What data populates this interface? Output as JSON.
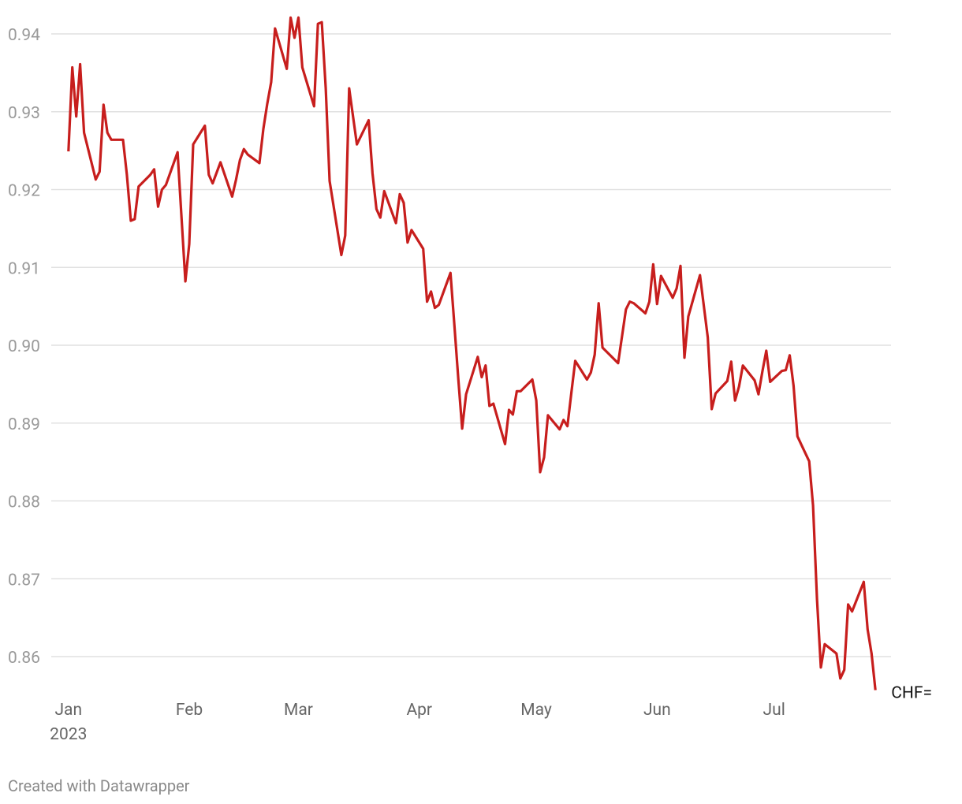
{
  "chart_data": {
    "type": "line",
    "credit": "Created with Datawrapper",
    "x": [
      0,
      1,
      2,
      3,
      4,
      7,
      8,
      9,
      10,
      11,
      14,
      15,
      16,
      17,
      18,
      21,
      22,
      23,
      24,
      25,
      28,
      30,
      31,
      32,
      35,
      36,
      37,
      39,
      42,
      43,
      44,
      45,
      46,
      49,
      50,
      51,
      52,
      53,
      56,
      57,
      58,
      59,
      60,
      63,
      64,
      65,
      66,
      67,
      70,
      71,
      72,
      74,
      77,
      78,
      79,
      80,
      81,
      84,
      85,
      86,
      87,
      88,
      91,
      92,
      93,
      94,
      95,
      98,
      99,
      100,
      101,
      102,
      105,
      106,
      107,
      108,
      109,
      112,
      113,
      114,
      115,
      116,
      119,
      120,
      121,
      122,
      123,
      126,
      127,
      128,
      129,
      130,
      133,
      134,
      135,
      136,
      137,
      141,
      143,
      144,
      145,
      148,
      149,
      150,
      151,
      152,
      155,
      156,
      157,
      158,
      159,
      162,
      164,
      165,
      166,
      169,
      170,
      171,
      172,
      173,
      176,
      177,
      178,
      179,
      180,
      183,
      184,
      185,
      186,
      187,
      190,
      191,
      192,
      193,
      194,
      197,
      198,
      199,
      200,
      201,
      204,
      205,
      206,
      207
    ],
    "series": [
      {
        "name": "CHF=",
        "color": "#c71e1d",
        "values": [
          0.9249,
          0.9357,
          0.9294,
          0.9361,
          0.9273,
          0.9213,
          0.9223,
          0.9309,
          0.9273,
          0.9264,
          0.9264,
          0.9219,
          0.916,
          0.9162,
          0.9204,
          0.9219,
          0.9226,
          0.9178,
          0.92,
          0.9206,
          0.9248,
          0.9082,
          0.913,
          0.9258,
          0.9282,
          0.9219,
          0.9208,
          0.9235,
          0.9191,
          0.9213,
          0.9238,
          0.9252,
          0.9245,
          0.9234,
          0.9278,
          0.931,
          0.9338,
          0.9407,
          0.9355,
          0.9421,
          0.9395,
          0.9421,
          0.9357,
          0.9307,
          0.9413,
          0.9415,
          0.933,
          0.9211,
          0.9116,
          0.9141,
          0.933,
          0.9258,
          0.9289,
          0.9221,
          0.9175,
          0.9164,
          0.9198,
          0.9157,
          0.9194,
          0.9183,
          0.9132,
          0.9148,
          0.9124,
          0.9056,
          0.9069,
          0.9048,
          0.9052,
          0.9093,
          0.9025,
          0.8957,
          0.8893,
          0.8937,
          0.8985,
          0.8959,
          0.8974,
          0.8922,
          0.8925,
          0.8873,
          0.8917,
          0.8911,
          0.8941,
          0.8941,
          0.8956,
          0.8929,
          0.8837,
          0.8856,
          0.891,
          0.8892,
          0.8904,
          0.8896,
          0.8939,
          0.898,
          0.8956,
          0.8965,
          0.8988,
          0.9054,
          0.8997,
          0.8977,
          0.9046,
          0.9056,
          0.9054,
          0.9041,
          0.9056,
          0.9104,
          0.9053,
          0.9089,
          0.9061,
          0.9073,
          0.9102,
          0.8984,
          0.9037,
          0.909,
          0.901,
          0.8918,
          0.8938,
          0.8954,
          0.8979,
          0.8929,
          0.8947,
          0.8974,
          0.8955,
          0.8937,
          0.8966,
          0.8993,
          0.8953,
          0.8967,
          0.8968,
          0.8987,
          0.8948,
          0.8883,
          0.8851,
          0.8794,
          0.8674,
          0.8586,
          0.8616,
          0.8604,
          0.8572,
          0.8583,
          0.8667,
          0.8658,
          0.8696,
          0.8635,
          0.8604,
          0.8557
        ]
      }
    ],
    "xlim": [
      -4,
      211
    ],
    "xticks": [
      {
        "value": 0,
        "label": "Jan\n2023"
      },
      {
        "value": 31,
        "label": "Feb"
      },
      {
        "value": 59,
        "label": "Mar"
      },
      {
        "value": 90,
        "label": "Apr"
      },
      {
        "value": 120,
        "label": "May"
      },
      {
        "value": 151,
        "label": "Jun"
      },
      {
        "value": 181,
        "label": "Jul"
      }
    ],
    "ylim": [
      0.855,
      0.942
    ],
    "yticks": [
      0.86,
      0.87,
      0.88,
      0.89,
      {
        "value": 0.9,
        "label": "0.90"
      },
      0.91,
      0.92,
      0.93,
      0.94
    ],
    "grid": true
  }
}
